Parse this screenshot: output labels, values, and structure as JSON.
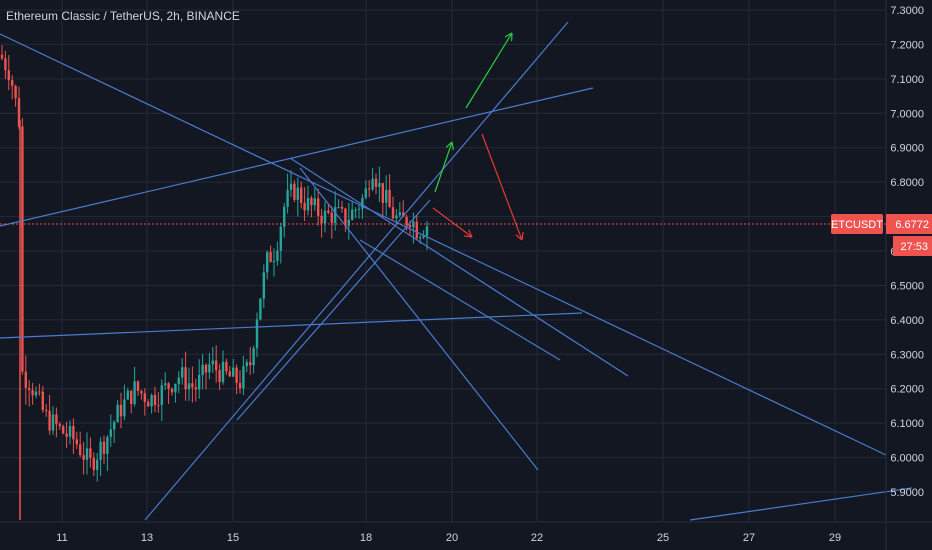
{
  "chart_data": {
    "type": "candlestick",
    "title": "Ethereum Classic / TetherUS, 2h, BINANCE",
    "symbol": "ETCUSDT",
    "last_price": "6.6772",
    "countdown": "27:53",
    "price_axis_hidden_label": "6.7000",
    "y_ticks": [
      "7.3000",
      "7.2000",
      "7.1000",
      "7.0000",
      "6.9000",
      "6.8000",
      "6.7000",
      "6.6000",
      "6.5000",
      "6.4000",
      "6.3000",
      "6.2000",
      "6.1000",
      "6.0000",
      "5.9000"
    ],
    "x_ticks": [
      "11",
      "13",
      "15",
      "18",
      "20",
      "22",
      "25",
      "27",
      "29"
    ],
    "ylim": [
      5.81,
      7.32
    ],
    "grid": true,
    "colors": {
      "background": "#131722",
      "grid": "#242a38",
      "up": "#26a69a",
      "down": "#ef5350",
      "trendline": "#4a7bd0",
      "arrow_up": "#2ecc40",
      "arrow_down": "#e53935",
      "price_tag": "#ef5350"
    }
  }
}
